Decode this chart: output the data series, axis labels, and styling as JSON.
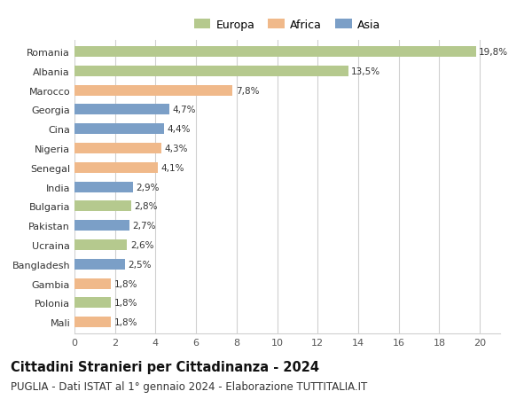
{
  "countries": [
    "Romania",
    "Albania",
    "Marocco",
    "Georgia",
    "Cina",
    "Nigeria",
    "Senegal",
    "India",
    "Bulgaria",
    "Pakistan",
    "Ucraina",
    "Bangladesh",
    "Gambia",
    "Polonia",
    "Mali"
  ],
  "values": [
    19.8,
    13.5,
    7.8,
    4.7,
    4.4,
    4.3,
    4.1,
    2.9,
    2.8,
    2.7,
    2.6,
    2.5,
    1.8,
    1.8,
    1.8
  ],
  "labels": [
    "19,8%",
    "13,5%",
    "7,8%",
    "4,7%",
    "4,4%",
    "4,3%",
    "4,1%",
    "2,9%",
    "2,8%",
    "2,7%",
    "2,6%",
    "2,5%",
    "1,8%",
    "1,8%",
    "1,8%"
  ],
  "continents": [
    "Europa",
    "Europa",
    "Africa",
    "Asia",
    "Asia",
    "Africa",
    "Africa",
    "Asia",
    "Europa",
    "Asia",
    "Europa",
    "Asia",
    "Africa",
    "Europa",
    "Africa"
  ],
  "colors": {
    "Europa": "#b5c98e",
    "Africa": "#f0b98a",
    "Asia": "#7b9fc7"
  },
  "xlim": [
    0,
    21
  ],
  "xticks": [
    0,
    2,
    4,
    6,
    8,
    10,
    12,
    14,
    16,
    18,
    20
  ],
  "title": "Cittadini Stranieri per Cittadinanza - 2024",
  "subtitle": "PUGLIA - Dati ISTAT al 1° gennaio 2024 - Elaborazione TUTTITALIA.IT",
  "background_color": "#ffffff",
  "grid_color": "#d0d0d0",
  "bar_height": 0.55,
  "title_fontsize": 10.5,
  "subtitle_fontsize": 8.5,
  "label_fontsize": 7.5,
  "tick_fontsize": 8,
  "legend_fontsize": 9
}
